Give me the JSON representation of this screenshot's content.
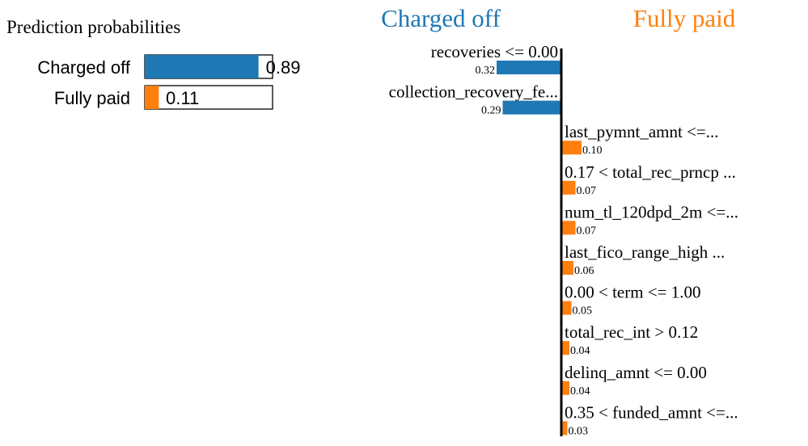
{
  "prediction_panel": {
    "title": "Prediction probabilities",
    "classes": [
      {
        "name": "Charged off",
        "probability": 0.89,
        "label": "0.89",
        "color": "#1f77b4"
      },
      {
        "name": "Fully paid",
        "probability": 0.11,
        "label": "0.11",
        "color": "#ff7f0e"
      }
    ]
  },
  "explanation_panel": {
    "negative_class": {
      "name": "Charged off",
      "color": "#1f77b4"
    },
    "positive_class": {
      "name": "Fully paid",
      "color": "#ff7f0e"
    }
  },
  "chart_data": {
    "type": "bar",
    "orientation": "horizontal",
    "categories": [
      "recoveries <= 0.00",
      "collection_recovery_fe...",
      "last_pymnt_amnt <=...",
      "0.17 < total_rec_prncp ...",
      "num_tl_120dpd_2m <=...",
      "last_fico_range_high ...",
      "0.00 < term <= 1.00",
      "total_rec_int > 0.12",
      "delinq_amnt <= 0.00",
      "0.35 < funded_amnt <=..."
    ],
    "values": [
      -0.32,
      -0.29,
      0.1,
      0.07,
      0.07,
      0.06,
      0.05,
      0.04,
      0.04,
      0.03
    ],
    "value_labels": [
      "0.32",
      "0.29",
      "0.10",
      "0.07",
      "0.07",
      "0.06",
      "0.05",
      "0.04",
      "0.04",
      "0.03"
    ],
    "negative_color": "#1f77b4",
    "positive_color": "#ff7f0e"
  }
}
